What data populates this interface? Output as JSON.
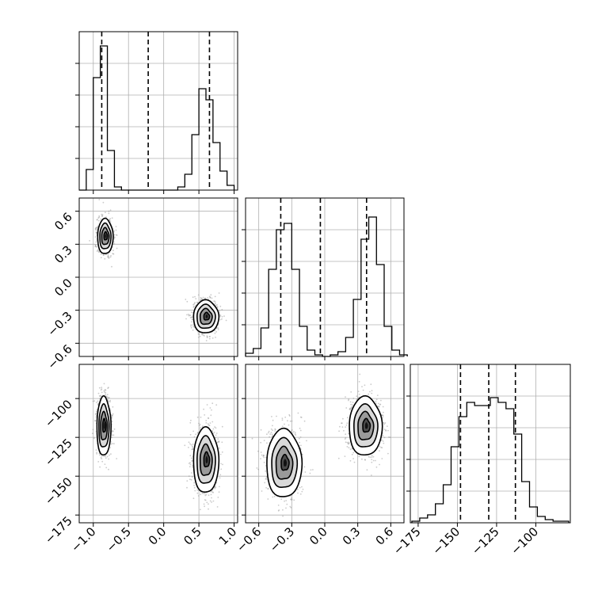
{
  "chart_data": {
    "type": "corner",
    "grid": true,
    "variables": [
      {
        "id": "p0",
        "range": [
          -1.2,
          1.05
        ],
        "ticks": [
          -1.0,
          -0.5,
          0.0,
          0.5,
          1.0
        ],
        "tick_labels": [
          "−1.0",
          "−0.5",
          "0.0",
          "0.5",
          "1.0"
        ]
      },
      {
        "id": "p1",
        "range": [
          -0.72,
          0.72
        ],
        "ticks": [
          -0.6,
          -0.3,
          0.0,
          0.3,
          0.6
        ],
        "tick_labels": [
          "−0.6",
          "−0.3",
          "0.0",
          "0.3",
          "0.6"
        ]
      },
      {
        "id": "p2",
        "range": [
          -180,
          -78
        ],
        "ticks": [
          -175,
          -150,
          -125,
          -100
        ],
        "tick_labels": [
          "−175",
          "−150",
          "−125",
          "−100"
        ]
      }
    ],
    "histograms": [
      {
        "variable": 0,
        "ylim": [
          0,
          1.0
        ],
        "edges": [
          -1.2,
          -1.1,
          -1.0,
          -0.9,
          -0.8,
          -0.7,
          -0.6,
          -0.5,
          -0.4,
          -0.3,
          -0.2,
          -0.1,
          0.0,
          0.1,
          0.2,
          0.3,
          0.4,
          0.5,
          0.6,
          0.7,
          0.8,
          0.9,
          1.0
        ],
        "counts": [
          0.0,
          0.13,
          0.71,
          0.91,
          0.25,
          0.02,
          0.0,
          0.0,
          0.0,
          0.0,
          0.0,
          0.0,
          0.0,
          0.0,
          0.02,
          0.1,
          0.35,
          0.64,
          0.57,
          0.3,
          0.12,
          0.03
        ],
        "quantiles": [
          -0.88,
          -0.22,
          0.65
        ]
      },
      {
        "variable": 1,
        "ylim": [
          0,
          1.0
        ],
        "edges": [
          -0.72,
          -0.65,
          -0.58,
          -0.51,
          -0.44,
          -0.37,
          -0.3,
          -0.23,
          -0.16,
          -0.09,
          -0.02,
          0.05,
          0.12,
          0.19,
          0.26,
          0.33,
          0.4,
          0.47,
          0.54,
          0.61,
          0.68,
          0.75
        ],
        "counts": [
          0.02,
          0.05,
          0.18,
          0.55,
          0.8,
          0.84,
          0.55,
          0.19,
          0.04,
          0.01,
          0.0,
          0.01,
          0.03,
          0.12,
          0.36,
          0.74,
          0.88,
          0.58,
          0.19,
          0.04,
          0.01
        ],
        "quantiles": [
          -0.4,
          -0.04,
          0.38
        ]
      },
      {
        "variable": 2,
        "ylim": [
          0,
          1.0
        ],
        "edges": [
          -179,
          -174,
          -169,
          -164,
          -159,
          -154,
          -149,
          -144,
          -139,
          -134,
          -129,
          -124,
          -119,
          -114,
          -109,
          -104,
          -99,
          -94,
          -89,
          -84,
          -79
        ],
        "counts": [
          0.01,
          0.03,
          0.05,
          0.12,
          0.24,
          0.48,
          0.67,
          0.76,
          0.74,
          0.74,
          0.79,
          0.76,
          0.72,
          0.56,
          0.26,
          0.1,
          0.04,
          0.02,
          0.01,
          0.01
        ],
        "quantiles": [
          -148,
          -130,
          -113
        ]
      }
    ],
    "scatter_panels": [
      {
        "x_var": 0,
        "y_var": 1,
        "clusters": [
          {
            "mean": [
              -0.83,
              0.37
            ],
            "sd": [
              0.055,
              0.08
            ],
            "n": 900
          },
          {
            "mean": [
              0.6,
              -0.36
            ],
            "sd": [
              0.09,
              0.075
            ],
            "n": 900
          }
        ]
      },
      {
        "x_var": 0,
        "y_var": 2,
        "clusters": [
          {
            "mean": [
              -0.85,
              -118
            ],
            "sd": [
              0.05,
              9.5
            ],
            "n": 900
          },
          {
            "mean": [
              0.6,
              -140
            ],
            "sd": [
              0.09,
              10.5
            ],
            "n": 900
          }
        ]
      },
      {
        "x_var": 1,
        "y_var": 2,
        "clusters": [
          {
            "mean": [
              -0.37,
              -142
            ],
            "sd": [
              0.08,
              11
            ],
            "n": 900
          },
          {
            "mean": [
              0.37,
              -118
            ],
            "sd": [
              0.075,
              9.5
            ],
            "n": 900
          }
        ]
      }
    ]
  }
}
